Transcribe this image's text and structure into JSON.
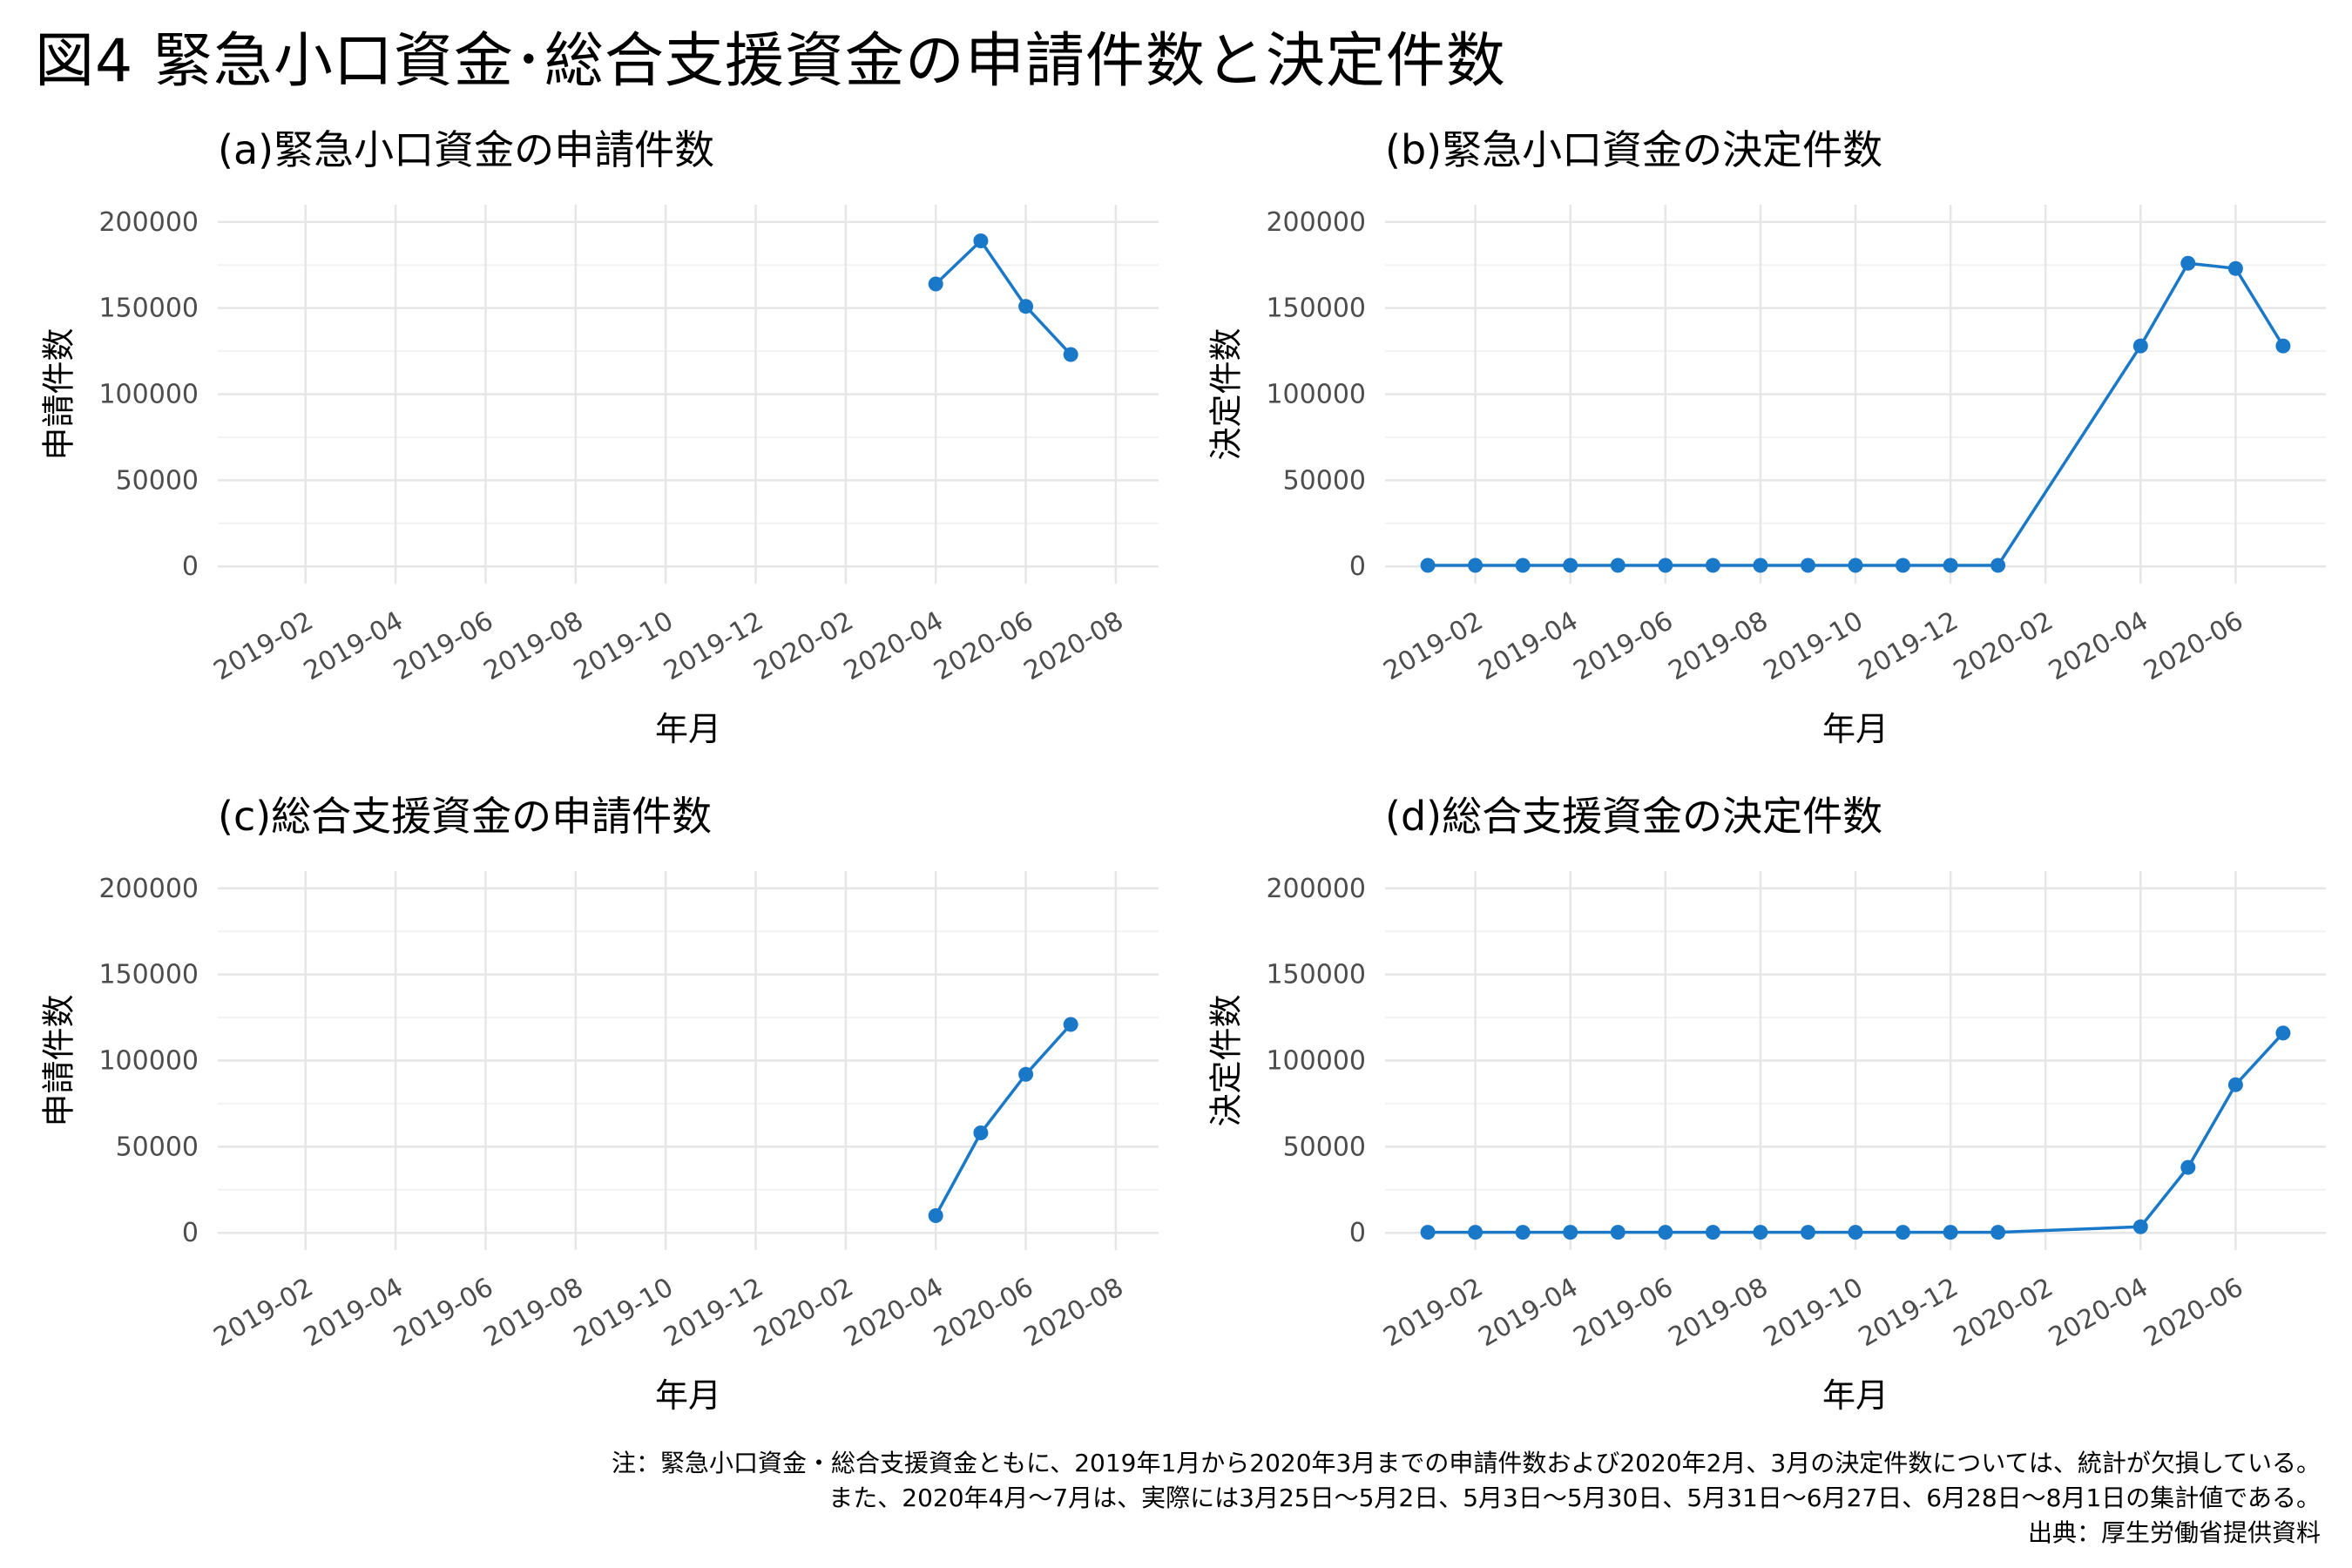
{
  "title": "図4 緊急小口資金･総合支援資金の申請件数と決定件数",
  "chart_data": [
    {
      "id": "a",
      "type": "line",
      "title": "(a)緊急小口資金の申請件数",
      "xlabel": "年月",
      "ylabel": "申請件数",
      "xlim": [
        "2019-01",
        "2020-08"
      ],
      "ylim": [
        0,
        200000
      ],
      "yticks": [
        0,
        50000,
        100000,
        150000,
        200000
      ],
      "xticks": [
        "2019-02",
        "2019-04",
        "2019-06",
        "2019-08",
        "2019-10",
        "2019-12",
        "2020-02",
        "2020-04",
        "2020-06",
        "2020-08"
      ],
      "grid": true,
      "color": "#1a78c8",
      "x": [
        "2020-04",
        "2020-05",
        "2020-06",
        "2020-07"
      ],
      "y": [
        164000,
        189000,
        151000,
        123000
      ]
    },
    {
      "id": "b",
      "type": "line",
      "title": "(b)緊急小口資金の決定件数",
      "xlabel": "年月",
      "ylabel": "決定件数",
      "xlim": [
        "2019-01",
        "2020-07"
      ],
      "ylim": [
        0,
        200000
      ],
      "yticks": [
        0,
        50000,
        100000,
        150000,
        200000
      ],
      "xticks": [
        "2019-02",
        "2019-04",
        "2019-06",
        "2019-08",
        "2019-10",
        "2019-12",
        "2020-02",
        "2020-04",
        "2020-06"
      ],
      "grid": true,
      "color": "#1a78c8",
      "x": [
        "2019-01",
        "2019-02",
        "2019-03",
        "2019-04",
        "2019-05",
        "2019-06",
        "2019-07",
        "2019-08",
        "2019-09",
        "2019-10",
        "2019-11",
        "2019-12",
        "2020-01",
        "2020-04",
        "2020-05",
        "2020-06",
        "2020-07"
      ],
      "y": [
        600,
        600,
        600,
        600,
        600,
        600,
        600,
        600,
        600,
        600,
        600,
        600,
        600,
        128000,
        176000,
        173000,
        128000
      ]
    },
    {
      "id": "c",
      "type": "line",
      "title": "(c)総合支援資金の申請件数",
      "xlabel": "年月",
      "ylabel": "申請件数",
      "xlim": [
        "2019-01",
        "2020-08"
      ],
      "ylim": [
        0,
        200000
      ],
      "yticks": [
        0,
        50000,
        100000,
        150000,
        200000
      ],
      "xticks": [
        "2019-02",
        "2019-04",
        "2019-06",
        "2019-08",
        "2019-10",
        "2019-12",
        "2020-02",
        "2020-04",
        "2020-06",
        "2020-08"
      ],
      "grid": true,
      "color": "#1a78c8",
      "x": [
        "2020-04",
        "2020-05",
        "2020-06",
        "2020-07"
      ],
      "y": [
        10000,
        58000,
        92000,
        121000
      ]
    },
    {
      "id": "d",
      "type": "line",
      "title": "(d)総合支援資金の決定件数",
      "xlabel": "年月",
      "ylabel": "決定件数",
      "xlim": [
        "2019-01",
        "2020-07"
      ],
      "ylim": [
        0,
        200000
      ],
      "yticks": [
        0,
        50000,
        100000,
        150000,
        200000
      ],
      "xticks": [
        "2019-02",
        "2019-04",
        "2019-06",
        "2019-08",
        "2019-10",
        "2019-12",
        "2020-02",
        "2020-04",
        "2020-06"
      ],
      "grid": true,
      "color": "#1a78c8",
      "x": [
        "2019-01",
        "2019-02",
        "2019-03",
        "2019-04",
        "2019-05",
        "2019-06",
        "2019-07",
        "2019-08",
        "2019-09",
        "2019-10",
        "2019-11",
        "2019-12",
        "2020-01",
        "2020-04",
        "2020-05",
        "2020-06",
        "2020-07"
      ],
      "y": [
        300,
        300,
        300,
        300,
        300,
        300,
        300,
        300,
        300,
        300,
        300,
        300,
        300,
        3500,
        38000,
        86000,
        116000
      ]
    }
  ],
  "notes": {
    "line1": "注：緊急小口資金・総合支援資金ともに、2019年1月から2020年3月までの申請件数および2020年2月、3月の決定件数については、統計が欠損している。",
    "line2": "また、2020年4月～7月は、実際には3月25日～5月2日、5月3日～5月30日、5月31日～6月27日、6月28日～8月1日の集計値である。",
    "source": "出典：厚生労働省提供資料"
  }
}
